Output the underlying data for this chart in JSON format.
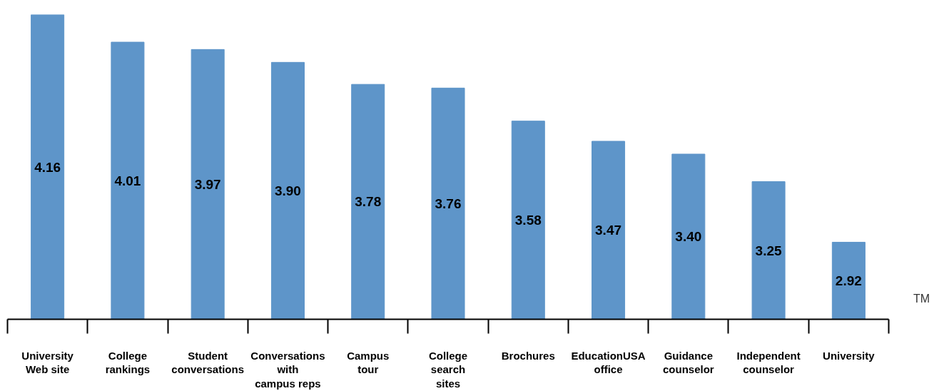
{
  "chart_data": {
    "type": "bar",
    "categories": [
      "University\nWeb site",
      "College\nrankings",
      "Student\nconversations",
      "Conversations\nwith\ncampus reps",
      "Campus\ntour",
      "College\nsearch\nsites",
      "Brochures",
      "EducationUSA\noffice",
      "Guidance\ncounselor",
      "Independent\ncounselor",
      "University"
    ],
    "values": [
      4.16,
      4.01,
      3.97,
      3.9,
      3.78,
      3.76,
      3.58,
      3.47,
      3.4,
      3.25,
      2.92
    ],
    "value_labels": [
      "4.16",
      "4.01",
      "3.97",
      "3.90",
      "3.78",
      "3.76",
      "3.58",
      "3.47",
      "3.40",
      "3.25",
      "2.92"
    ],
    "color": "#5e95c9",
    "ylim": [
      2.5,
      4.16
    ],
    "tick_labels": "x",
    "annotations": [
      "TM"
    ]
  }
}
